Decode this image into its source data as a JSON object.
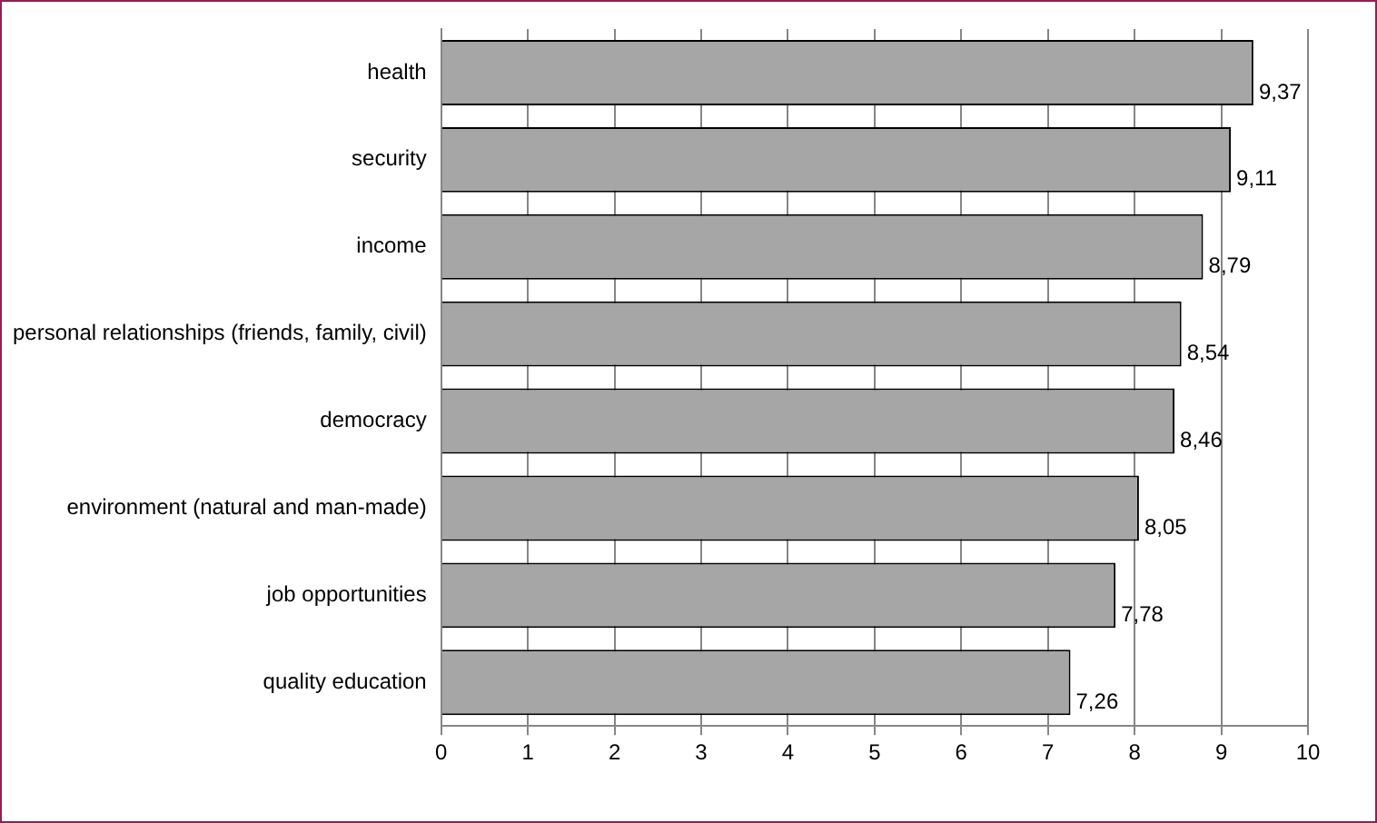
{
  "chart_data": {
    "type": "bar",
    "orientation": "horizontal",
    "categories": [
      "health",
      "security",
      "income",
      "personal relationships (friends, family, civil)",
      "democracy",
      "environment (natural and man-made)",
      "job opportunities",
      "quality education"
    ],
    "values": [
      9.37,
      9.11,
      8.79,
      8.54,
      8.46,
      8.05,
      7.78,
      7.26
    ],
    "value_labels": [
      "9,37",
      "9,11",
      "8,79",
      "8,54",
      "8,46",
      "8,05",
      "7,78",
      "7,26"
    ],
    "color": "#a6a6a6",
    "xlim": [
      0,
      10
    ],
    "xticks": [
      0,
      1,
      2,
      3,
      4,
      5,
      6,
      7,
      8,
      9,
      10
    ],
    "grid": "x",
    "legend": false
  }
}
